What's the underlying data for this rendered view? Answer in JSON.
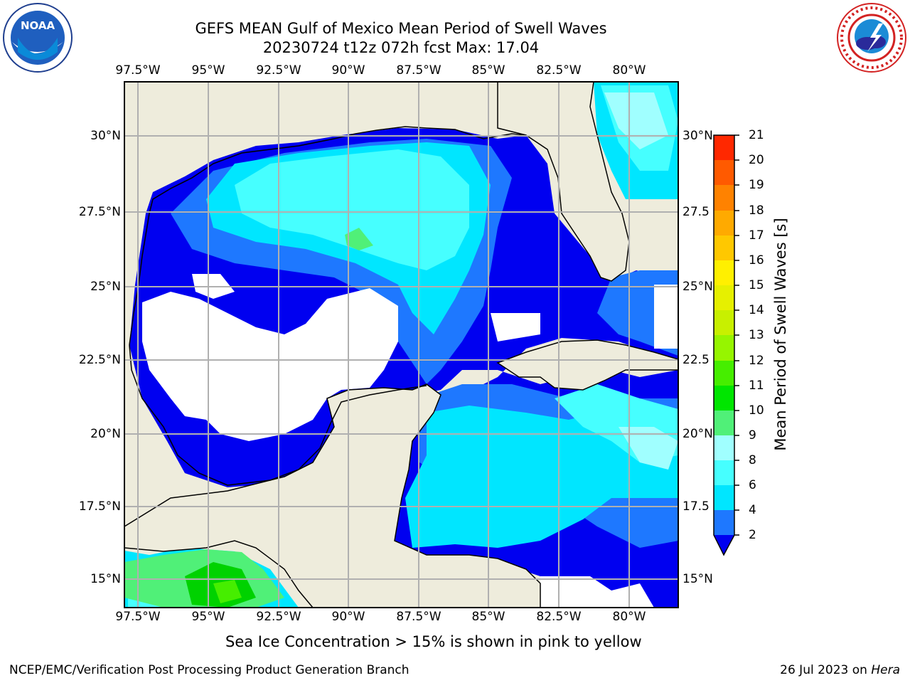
{
  "title": {
    "line1": "GEFS MEAN Gulf of Mexico Mean Period of Swell Waves",
    "line2": "20230724 t12z 072h fcst   Max: 17.04"
  },
  "logos": {
    "left": "noaa-logo",
    "right": "national-weather-service-logo"
  },
  "map": {
    "lon_labels": [
      "97.5°W",
      "95°W",
      "92.5°W",
      "90°W",
      "87.5°W",
      "85°W",
      "82.5°W",
      "80°W"
    ],
    "lat_labels_left": [
      "30°N",
      "27.5°N",
      "25°N",
      "22.5°N",
      "20°N",
      "17.5°N",
      "15°N"
    ],
    "lat_labels_right": [
      "30°N",
      "27.5",
      "25°N",
      "22.5",
      "20°N",
      "17.5",
      "15°N"
    ],
    "land_color": "#eeecdc",
    "no_data_color": "#ffffff"
  },
  "colorbar": {
    "title": "Mean Period of Swell Waves [s]",
    "ticks": [
      "2",
      "4",
      "6",
      "8",
      "9",
      "10",
      "11",
      "12",
      "13",
      "14",
      "15",
      "16",
      "17",
      "18",
      "19",
      "20",
      "21"
    ],
    "colors": [
      "#0000f0",
      "#1e78ff",
      "#00e6ff",
      "#46ffff",
      "#a0ffff",
      "#50f078",
      "#00d200",
      "#46ee00",
      "#96f500",
      "#c8ff00",
      "#e6ff00",
      "#fff000",
      "#ffd200",
      "#ffaa00",
      "#ff8200",
      "#ff5a00",
      "#ff2800",
      "#ff0000"
    ],
    "extend": "min"
  },
  "note": "Sea Ice Concentration > 15% is shown in pink to yellow",
  "footer": {
    "left": "NCEP/EMC/Verification Post Processing Product Generation Branch",
    "right_prefix": "26 Jul 2023 on ",
    "right_host": "Hera"
  }
}
